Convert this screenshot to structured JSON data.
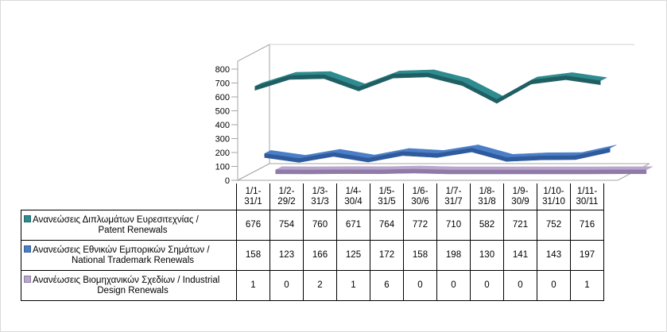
{
  "chart_data": {
    "type": "line",
    "style": "3d",
    "categories": [
      [
        "1/1-",
        "31/1"
      ],
      [
        "1/2-",
        "29/2"
      ],
      [
        "1/3-",
        "31/3"
      ],
      [
        "1/4-",
        "30/4"
      ],
      [
        "1/5-",
        "31/5"
      ],
      [
        "1/6-",
        "30/6"
      ],
      [
        "1/7-",
        "31/7"
      ],
      [
        "1/8-",
        "31/8"
      ],
      [
        "1/9-",
        "30/9"
      ],
      [
        "1/10-",
        "31/10"
      ],
      [
        "1/11-",
        "30/11"
      ]
    ],
    "yticks": [
      0,
      100,
      200,
      300,
      400,
      500,
      600,
      700,
      800
    ],
    "ylim": [
      0,
      800
    ],
    "grid": false,
    "legend": "data-table",
    "series": [
      {
        "name_line1": "Ανανεώσεις Διπλωμάτων Ευρεσιτεχνίας  /",
        "name_line2": "Patent Renewals",
        "color": "#2e8b8f",
        "color_dark": "#1f5f63",
        "values": [
          676,
          754,
          760,
          671,
          764,
          772,
          710,
          582,
          721,
          752,
          716
        ]
      },
      {
        "name_line1": "Ανανεώσεις Εθνικών Εμπορικών Σημάτων /",
        "name_line2": "National Trademark Renewals",
        "color": "#4a7ec9",
        "color_dark": "#2f5b9c",
        "values": [
          158,
          123,
          166,
          125,
          172,
          158,
          198,
          130,
          141,
          143,
          197
        ]
      },
      {
        "name_line1": "Ανανέωσεις Βιομηχανικών Σχεδίων / Industrial",
        "name_line2": "Design Renewals",
        "color": "#b9a6cf",
        "color_dark": "#8f7aa8",
        "values": [
          1,
          0,
          2,
          1,
          6,
          0,
          0,
          0,
          0,
          0,
          1
        ]
      }
    ]
  }
}
